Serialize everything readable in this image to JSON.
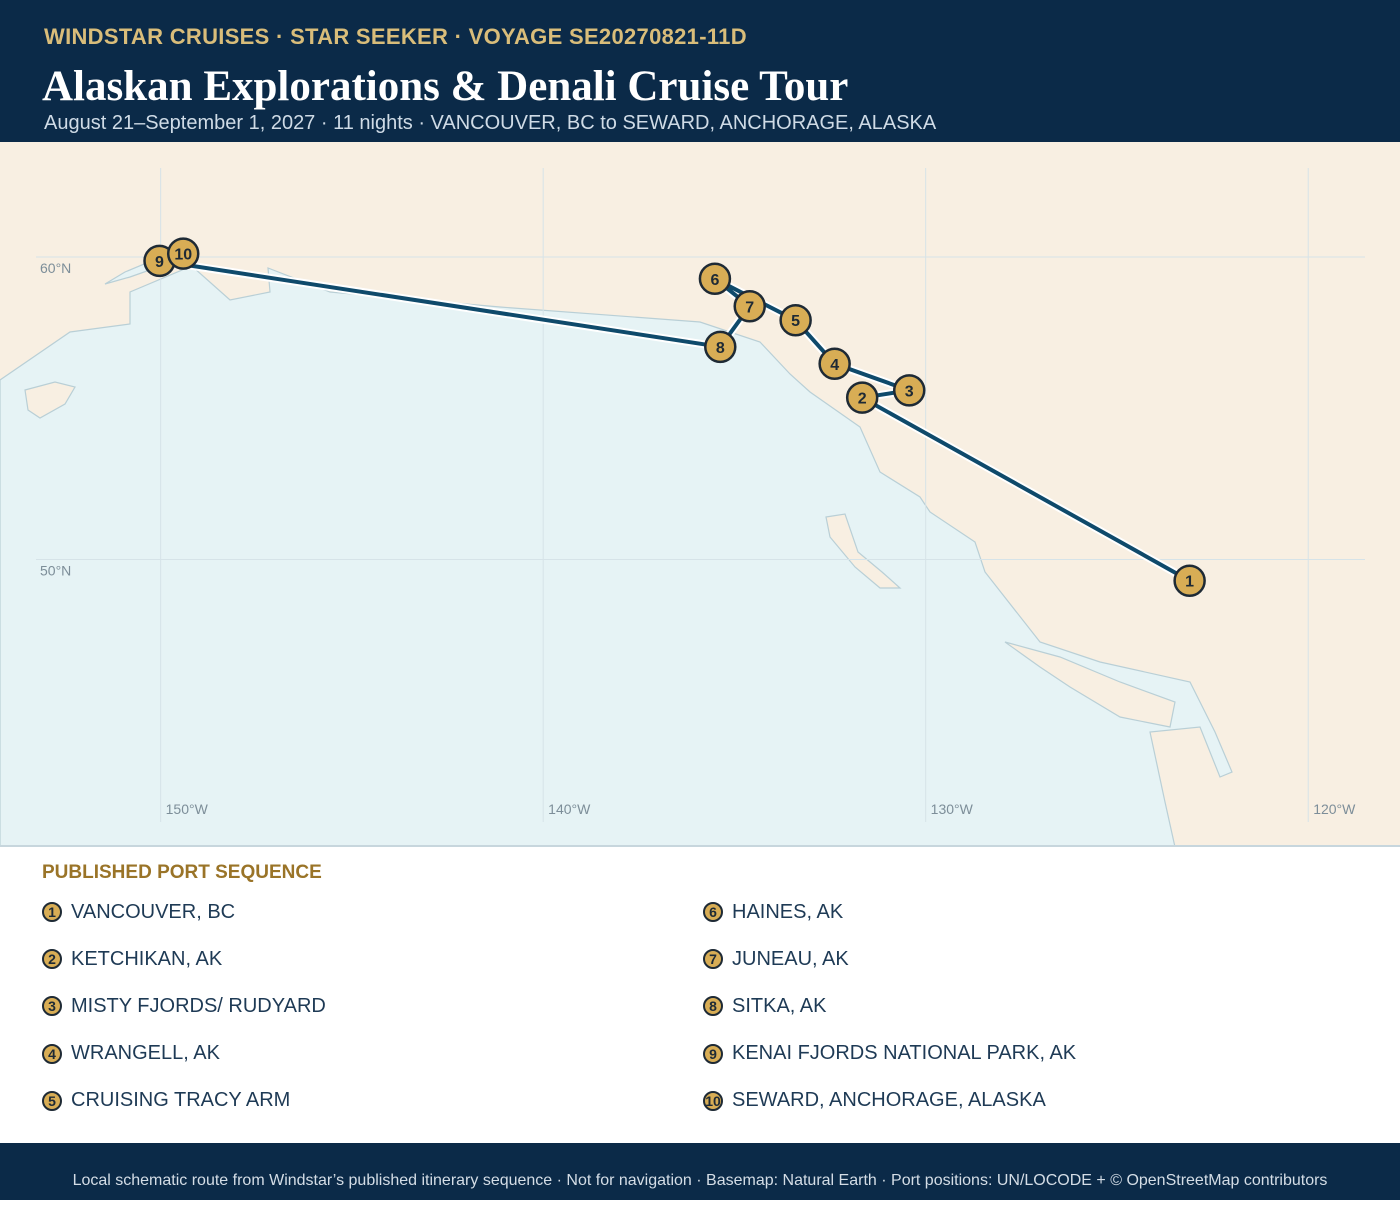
{
  "header": {
    "eyebrow": "WINDSTAR CRUISES · STAR SEEKER · VOYAGE SE20270821-11D",
    "title": "Alaskan Explorations & Denali Cruise Tour",
    "subtitle": "August 21–September 1, 2027 · 11 nights · VANCOUVER, BC to SEWARD, ANCHORAGE, ALASKA"
  },
  "map": {
    "xlim": [
      -154.2,
      -117.6
    ],
    "ylim": [
      40.5,
      63.8
    ],
    "xticks": [
      {
        "value": -150,
        "label": "150°W"
      },
      {
        "value": -140,
        "label": "140°W"
      },
      {
        "value": -130,
        "label": "130°W"
      },
      {
        "value": -120,
        "label": "120°W"
      }
    ],
    "yticks": [
      {
        "value": 60,
        "label": "60°N"
      },
      {
        "value": 50,
        "label": "50°N"
      }
    ],
    "ports": [
      {
        "stop": 1,
        "name": "VANCOUVER, BC",
        "lon": -123.1,
        "lat": 49.3
      },
      {
        "stop": 2,
        "name": "KETCHIKAN, AK",
        "lon": -131.66,
        "lat": 55.35
      },
      {
        "stop": 3,
        "name": "MISTY FJORDS/ RUDYARD",
        "lon": -130.43,
        "lat": 55.59
      },
      {
        "stop": 4,
        "name": "WRANGELL, AK",
        "lon": -132.38,
        "lat": 56.47
      },
      {
        "stop": 5,
        "name": "CRUISING TRACY ARM",
        "lon": -133.4,
        "lat": 57.91
      },
      {
        "stop": 6,
        "name": "HAINES, AK",
        "lon": -135.51,
        "lat": 59.28
      },
      {
        "stop": 7,
        "name": "JUNEAU, AK",
        "lon": -134.6,
        "lat": 58.37
      },
      {
        "stop": 8,
        "name": "SITKA, AK",
        "lon": -135.37,
        "lat": 57.03
      },
      {
        "stop": 9,
        "name": "KENAI FJORDS NATIONAL PARK, AK",
        "lon": -150.03,
        "lat": 59.87
      },
      {
        "stop": 10,
        "name": "SEWARD, ANCHORAGE, ALASKA",
        "lon": -149.41,
        "lat": 60.11
      }
    ]
  },
  "legend": {
    "title": "PUBLISHED PORT SEQUENCE"
  },
  "footer": "Local schematic route from Windstar’s published itinerary sequence · Not for navigation · Basemap: Natural Earth · Port positions: UN/LOCODE + © OpenStreetMap contributors"
}
